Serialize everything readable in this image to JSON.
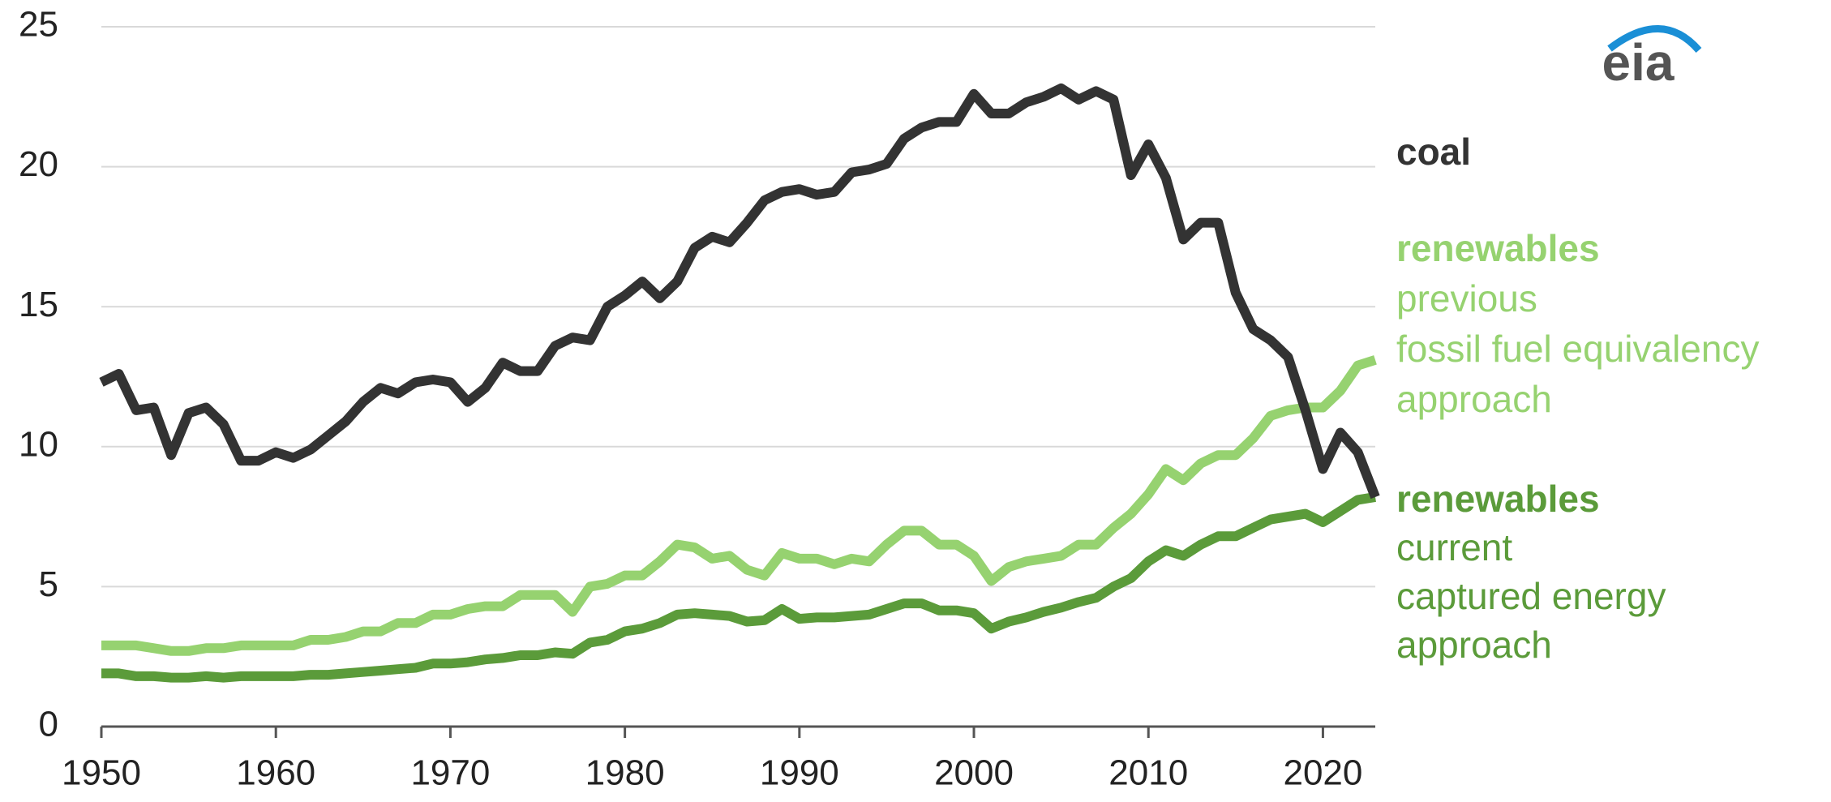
{
  "chart_data": {
    "type": "line",
    "logo": "eia",
    "x": [
      1950,
      1951,
      1952,
      1953,
      1954,
      1955,
      1956,
      1957,
      1958,
      1959,
      1960,
      1961,
      1962,
      1963,
      1964,
      1965,
      1966,
      1967,
      1968,
      1969,
      1970,
      1971,
      1972,
      1973,
      1974,
      1975,
      1976,
      1977,
      1978,
      1979,
      1980,
      1981,
      1982,
      1983,
      1984,
      1985,
      1986,
      1987,
      1988,
      1989,
      1990,
      1991,
      1992,
      1993,
      1994,
      1995,
      1996,
      1997,
      1998,
      1999,
      2000,
      2001,
      2002,
      2003,
      2004,
      2005,
      2006,
      2007,
      2008,
      2009,
      2010,
      2011,
      2012,
      2013,
      2014,
      2015,
      2016,
      2017,
      2018,
      2019,
      2020,
      2021,
      2022,
      2023
    ],
    "series": [
      {
        "name": "coal",
        "color": "#333333",
        "values": [
          12.3,
          12.6,
          11.3,
          11.4,
          9.7,
          11.2,
          11.4,
          10.8,
          9.5,
          9.5,
          9.8,
          9.6,
          9.9,
          10.4,
          10.9,
          11.6,
          12.1,
          11.9,
          12.3,
          12.4,
          12.3,
          11.6,
          12.1,
          13.0,
          12.7,
          12.7,
          13.6,
          13.9,
          13.8,
          15.0,
          15.4,
          15.9,
          15.3,
          15.9,
          17.1,
          17.5,
          17.3,
          18.0,
          18.8,
          19.1,
          19.2,
          19.0,
          19.1,
          19.8,
          19.9,
          20.1,
          21.0,
          21.4,
          21.6,
          21.6,
          22.6,
          21.9,
          21.9,
          22.3,
          22.5,
          22.8,
          22.4,
          22.7,
          22.4,
          19.7,
          20.8,
          19.6,
          17.4,
          18.0,
          18.0,
          15.5,
          14.2,
          13.8,
          13.2,
          11.3,
          9.2,
          10.5,
          9.8,
          8.2
        ]
      },
      {
        "name": "renewables",
        "description": [
          "previous",
          "fossil fuel equivalency",
          "approach"
        ],
        "color": "#96d270",
        "values": [
          2.9,
          2.9,
          2.9,
          2.8,
          2.7,
          2.7,
          2.8,
          2.8,
          2.9,
          2.9,
          2.9,
          2.9,
          3.1,
          3.1,
          3.2,
          3.4,
          3.4,
          3.7,
          3.7,
          4.0,
          4.0,
          4.2,
          4.3,
          4.3,
          4.7,
          4.7,
          4.7,
          4.1,
          5.0,
          5.1,
          5.4,
          5.4,
          5.9,
          6.5,
          6.4,
          6.0,
          6.1,
          5.6,
          5.4,
          6.2,
          6.0,
          6.0,
          5.8,
          6.0,
          5.9,
          6.5,
          7.0,
          7.0,
          6.5,
          6.5,
          6.1,
          5.2,
          5.7,
          5.9,
          6.0,
          6.1,
          6.5,
          6.5,
          7.1,
          7.6,
          8.3,
          9.2,
          8.8,
          9.4,
          9.7,
          9.7,
          10.3,
          11.1,
          11.3,
          11.4,
          11.4,
          12.0,
          12.9,
          13.1
        ]
      },
      {
        "name": "renewables",
        "description": [
          "current",
          "captured energy",
          "approach"
        ],
        "color": "#5b9b3a",
        "values": [
          1.9,
          1.9,
          1.8,
          1.8,
          1.75,
          1.75,
          1.8,
          1.75,
          1.8,
          1.8,
          1.8,
          1.8,
          1.85,
          1.85,
          1.9,
          1.95,
          2.0,
          2.05,
          2.1,
          2.25,
          2.25,
          2.3,
          2.4,
          2.45,
          2.55,
          2.55,
          2.65,
          2.6,
          3.0,
          3.1,
          3.4,
          3.5,
          3.7,
          4.0,
          4.05,
          4.0,
          3.95,
          3.75,
          3.8,
          4.2,
          3.85,
          3.9,
          3.9,
          3.95,
          4.0,
          4.2,
          4.4,
          4.4,
          4.15,
          4.15,
          4.05,
          3.5,
          3.75,
          3.9,
          4.1,
          4.25,
          4.45,
          4.6,
          5.0,
          5.3,
          5.9,
          6.3,
          6.1,
          6.5,
          6.8,
          6.8,
          7.1,
          7.4,
          7.5,
          7.6,
          7.3,
          7.7,
          8.1,
          8.2
        ]
      }
    ],
    "xlim": [
      1950,
      2023
    ],
    "xticks": [
      1950,
      1960,
      1970,
      1980,
      1990,
      2000,
      2010,
      2020
    ],
    "ylim": [
      0,
      25
    ],
    "yticks": [
      0,
      5,
      10,
      15,
      20,
      25
    ],
    "grid": true
  }
}
